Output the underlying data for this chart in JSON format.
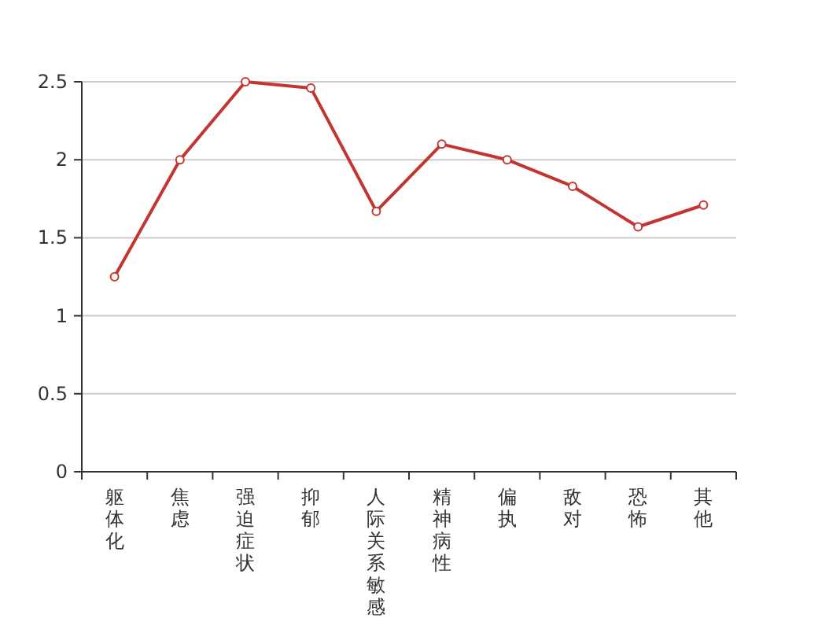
{
  "chart_data": {
    "type": "line",
    "categories": [
      "躯体化",
      "焦虑",
      "强迫症状",
      "抑郁",
      "人际关系敏感",
      "精神病性",
      "偏执",
      "敌对",
      "恐怖",
      "其他"
    ],
    "series": [
      {
        "color": "#c23531",
        "values": [
          1.25,
          2.0,
          2.5,
          2.46,
          1.67,
          2.1,
          2.0,
          1.83,
          1.57,
          1.71
        ]
      }
    ],
    "ylim": [
      0,
      2.5
    ],
    "yticks": [
      0,
      {
        "value": 0.5,
        "label": "0.5"
      },
      1,
      {
        "value": 1.5,
        "label": "1.5"
      },
      2,
      {
        "value": 2.5,
        "label": "2.5"
      }
    ],
    "grid": "y",
    "marker": "circle",
    "line_style": "solid"
  }
}
